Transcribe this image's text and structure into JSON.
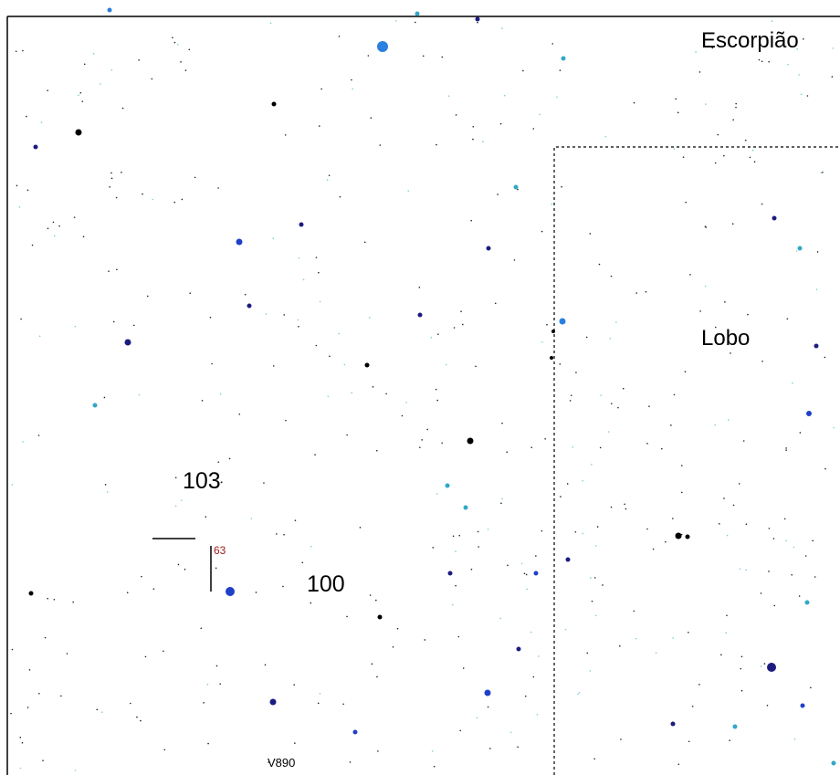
{
  "labels": {
    "constellation_1": "Escorpião",
    "constellation_2": "Lobo",
    "number_1": "103",
    "number_2": "100",
    "marker": "63",
    "star_name": "V890"
  }
}
